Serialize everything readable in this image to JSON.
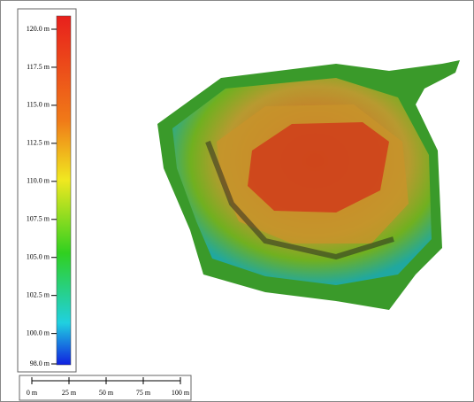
{
  "legend": {
    "range": [
      98,
      120
    ],
    "ticks": [
      {
        "value": 120,
        "label": "120.0 m"
      },
      {
        "value": 117.5,
        "label": "117.5 m"
      },
      {
        "value": 115,
        "label": "115.0 m"
      },
      {
        "value": 112.5,
        "label": "112.5 m"
      },
      {
        "value": 110,
        "label": "110.0 m"
      },
      {
        "value": 107.5,
        "label": "107.5 m"
      },
      {
        "value": 105,
        "label": "105.0 m"
      },
      {
        "value": 102.5,
        "label": "102.5 m"
      },
      {
        "value": 100,
        "label": "100.0 m"
      },
      {
        "value": 98,
        "label": "98.0 m"
      }
    ]
  },
  "scale_bar": {
    "ticks": [
      {
        "value": 0,
        "label": "0 m"
      },
      {
        "value": 25,
        "label": "25 m"
      },
      {
        "value": 50,
        "label": "50 m"
      },
      {
        "value": 75,
        "label": "75 m"
      },
      {
        "value": 100,
        "label": "100 m"
      }
    ]
  }
}
